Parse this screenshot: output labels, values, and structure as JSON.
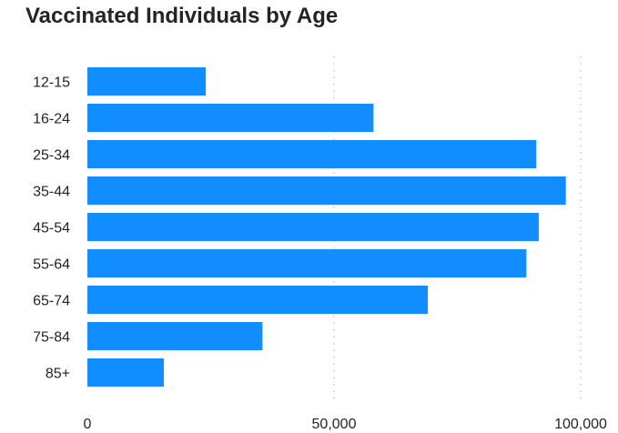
{
  "chart_data": {
    "type": "bar",
    "orientation": "horizontal",
    "title": "Vaccinated Individuals by Age",
    "categories": [
      "12-15",
      "16-24",
      "25-34",
      "35-44",
      "45-54",
      "55-64",
      "65-74",
      "75-84",
      "85+"
    ],
    "values": [
      24000,
      58000,
      91000,
      97000,
      91500,
      89000,
      69000,
      35500,
      15500
    ],
    "xticks": [
      0,
      50000,
      100000
    ],
    "xtick_labels": [
      "0",
      "50,000",
      "100,000"
    ],
    "xlim": [
      0,
      100000
    ],
    "grid": true,
    "colors": {
      "bar": "#118DFF",
      "grid": "#C8C6C4",
      "text": "#252423"
    }
  }
}
